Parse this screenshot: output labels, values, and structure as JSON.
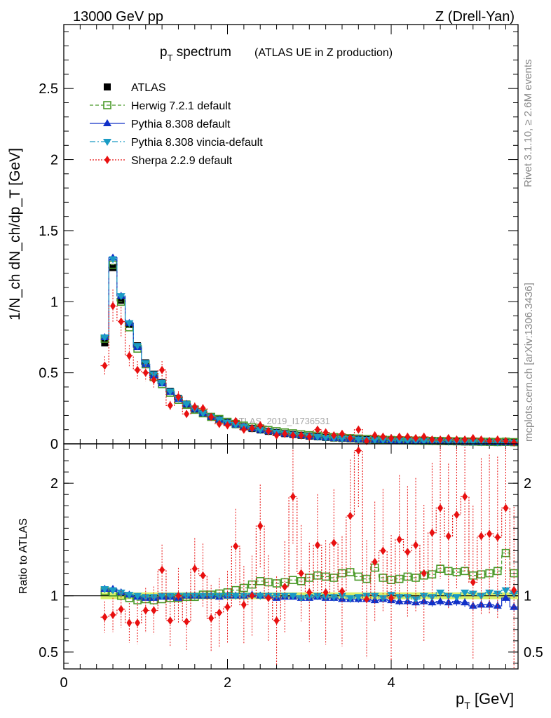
{
  "header": {
    "left": "13000 GeV pp",
    "right": "Z (Drell-Yan)"
  },
  "side": {
    "top": "Rivet 3.1.10, ≥ 2.6M events",
    "bottom": "mcplots.cern.ch [arXiv:1306.3436]"
  },
  "watermark": "ATLAS_2019_I1736531",
  "chart_data": [
    {
      "type": "line",
      "panel": "main",
      "title": "p_T spectrum",
      "title_main": "p",
      "title_sub": "T",
      "title_tail": " spectrum",
      "subtitle": "(ATLAS UE in Z production)",
      "ylabel": "1/N_ch dN_ch/dp_T [GeV]",
      "xlim": [
        0,
        5.55
      ],
      "ylim": [
        0,
        2.95
      ],
      "yticks": [
        0,
        0.5,
        1,
        1.5,
        2,
        2.5
      ],
      "ytick_labels": [
        "0",
        "0.5",
        "1",
        "1.5",
        "2",
        "2.5"
      ],
      "legend_position": "top-left",
      "legend": [
        "ATLAS",
        "Herwig 7.2.1 default",
        "Pythia 8.308 default",
        "Pythia 8.308 vincia-default",
        "Sherpa 2.2.9 default"
      ],
      "x": [
        0.5,
        0.6,
        0.7,
        0.8,
        0.9,
        1.0,
        1.1,
        1.2,
        1.3,
        1.4,
        1.5,
        1.6,
        1.7,
        1.8,
        1.9,
        2.0,
        2.1,
        2.2,
        2.3,
        2.4,
        2.5,
        2.6,
        2.7,
        2.8,
        2.9,
        3.0,
        3.1,
        3.2,
        3.3,
        3.4,
        3.5,
        3.6,
        3.7,
        3.8,
        3.9,
        4.0,
        4.1,
        4.2,
        4.3,
        4.4,
        4.5,
        4.6,
        4.7,
        4.8,
        4.9,
        5.0,
        5.1,
        5.2,
        5.3,
        5.4,
        5.5
      ],
      "series": [
        {
          "name": "ATLAS",
          "color": "#000000",
          "marker": "square",
          "values": [
            0.71,
            1.24,
            1.01,
            0.84,
            0.69,
            0.57,
            0.49,
            0.43,
            0.37,
            0.32,
            0.28,
            0.245,
            0.215,
            0.19,
            0.17,
            0.15,
            0.135,
            0.12,
            0.108,
            0.098,
            0.088,
            0.08,
            0.072,
            0.066,
            0.06,
            0.054,
            0.05,
            0.045,
            0.041,
            0.038,
            0.035,
            0.032,
            0.03,
            0.028,
            0.026,
            0.024,
            0.022,
            0.021,
            0.02,
            0.019,
            0.018,
            0.017,
            0.016,
            0.015,
            0.014,
            0.013,
            0.012,
            0.012,
            0.011,
            0.011,
            0.01
          ]
        },
        {
          "name": "Herwig 7.2.1 default",
          "color": "#4b9a2a",
          "marker": "open-square",
          "values": [
            0.74,
            1.26,
            1.0,
            0.82,
            0.67,
            0.56,
            0.47,
            0.42,
            0.36,
            0.31,
            0.275,
            0.24,
            0.215,
            0.19,
            0.175,
            0.155,
            0.14,
            0.128,
            0.116,
            0.108,
            0.097,
            0.089,
            0.08,
            0.074,
            0.067,
            0.061,
            0.057,
            0.051,
            0.047,
            0.044,
            0.04,
            0.037,
            0.034,
            0.032,
            0.029,
            0.027,
            0.025,
            0.024,
            0.023,
            0.022,
            0.021,
            0.02,
            0.019,
            0.018,
            0.017,
            0.016,
            0.015,
            0.014,
            0.013,
            0.015,
            0.012
          ]
        },
        {
          "name": "Pythia 8.308 default",
          "color": "#1030c8",
          "marker": "triangle-up",
          "values": [
            0.75,
            1.31,
            1.04,
            0.85,
            0.68,
            0.56,
            0.48,
            0.425,
            0.365,
            0.315,
            0.28,
            0.245,
            0.215,
            0.19,
            0.17,
            0.15,
            0.135,
            0.12,
            0.108,
            0.098,
            0.088,
            0.079,
            0.071,
            0.065,
            0.059,
            0.053,
            0.049,
            0.044,
            0.04,
            0.037,
            0.034,
            0.031,
            0.029,
            0.027,
            0.025,
            0.023,
            0.021,
            0.02,
            0.019,
            0.018,
            0.017,
            0.016,
            0.015,
            0.014,
            0.013,
            0.012,
            0.011,
            0.011,
            0.01,
            0.01,
            0.009
          ]
        },
        {
          "name": "Pythia 8.308 vincia-default",
          "color": "#1a9bc4",
          "marker": "triangle-down",
          "values": [
            0.75,
            1.3,
            1.04,
            0.85,
            0.69,
            0.57,
            0.49,
            0.43,
            0.37,
            0.32,
            0.28,
            0.245,
            0.215,
            0.19,
            0.17,
            0.15,
            0.135,
            0.12,
            0.108,
            0.098,
            0.088,
            0.08,
            0.072,
            0.066,
            0.06,
            0.054,
            0.05,
            0.045,
            0.041,
            0.038,
            0.035,
            0.032,
            0.03,
            0.028,
            0.026,
            0.024,
            0.022,
            0.021,
            0.02,
            0.019,
            0.018,
            0.017,
            0.016,
            0.015,
            0.014,
            0.013,
            0.012,
            0.012,
            0.011,
            0.011,
            0.01
          ]
        },
        {
          "name": "Sherpa 2.2.9 default",
          "color": "#e81010",
          "marker": "diamond",
          "values": [
            0.55,
            0.97,
            0.86,
            0.62,
            0.52,
            0.5,
            0.45,
            0.52,
            0.27,
            0.33,
            0.21,
            0.26,
            0.25,
            0.19,
            0.14,
            0.13,
            0.16,
            0.1,
            0.11,
            0.13,
            0.09,
            0.06,
            0.07,
            0.06,
            0.06,
            0.05,
            0.1,
            0.08,
            0.06,
            0.07,
            0.04,
            0.1,
            0.02,
            0.06,
            0.05,
            0.04,
            0.05,
            0.05,
            0.04,
            0.05,
            0.03,
            0.03,
            0.04,
            0.03,
            0.03,
            0.04,
            0.03,
            0.02,
            0.03,
            0.02,
            0.01
          ]
        }
      ]
    },
    {
      "type": "line",
      "panel": "ratio",
      "ylabel": "Ratio to ATLAS",
      "xlabel": "p_T [GeV]",
      "xlabel_main": "p",
      "xlabel_sub": "T",
      "xlabel_tail": " [GeV]",
      "xlim": [
        0,
        5.55
      ],
      "ylim": [
        0.35,
        2.35
      ],
      "yticks": [
        0.5,
        1,
        2
      ],
      "ytick_labels": [
        "0.5",
        "1",
        "2"
      ],
      "xticks": [
        0,
        2,
        4
      ],
      "xtick_labels": [
        "0",
        "2",
        "4"
      ],
      "x": [
        0.5,
        0.6,
        0.7,
        0.8,
        0.9,
        1.0,
        1.1,
        1.2,
        1.3,
        1.4,
        1.5,
        1.6,
        1.7,
        1.8,
        1.9,
        2.0,
        2.1,
        2.2,
        2.3,
        2.4,
        2.5,
        2.6,
        2.7,
        2.8,
        2.9,
        3.0,
        3.1,
        3.2,
        3.3,
        3.4,
        3.5,
        3.6,
        3.7,
        3.8,
        3.9,
        4.0,
        4.1,
        4.2,
        4.3,
        4.4,
        4.5,
        4.6,
        4.7,
        4.8,
        4.9,
        5.0,
        5.1,
        5.2,
        5.3,
        5.4,
        5.5
      ],
      "data_band": {
        "name": "ATLAS uncertainty",
        "color": "#d9f06a",
        "half_width": 0.03
      },
      "series": [
        {
          "name": "Herwig 7.2.1 default",
          "color": "#4b9a2a",
          "marker": "open-square",
          "values": [
            1.04,
            1.03,
            1.0,
            0.98,
            0.96,
            0.97,
            0.96,
            0.97,
            0.98,
            0.98,
            0.99,
            0.99,
            1.01,
            1.01,
            1.02,
            1.03,
            1.05,
            1.07,
            1.1,
            1.13,
            1.12,
            1.11,
            1.12,
            1.14,
            1.13,
            1.16,
            1.18,
            1.17,
            1.16,
            1.2,
            1.21,
            1.17,
            1.15,
            1.25,
            1.16,
            1.14,
            1.15,
            1.17,
            1.16,
            1.18,
            1.19,
            1.24,
            1.22,
            1.21,
            1.22,
            1.18,
            1.19,
            1.2,
            1.22,
            1.38,
            1.2
          ]
        },
        {
          "name": "Pythia 8.308 default",
          "color": "#1030c8",
          "marker": "triangle-up",
          "values": [
            1.06,
            1.06,
            1.03,
            1.01,
            0.99,
            0.98,
            0.98,
            0.99,
            0.99,
            0.98,
            1.0,
            1.0,
            1.0,
            1.0,
            0.99,
            1.0,
            1.0,
            1.0,
            1.01,
            1.0,
            1.0,
            0.98,
            0.99,
            0.99,
            0.98,
            0.98,
            0.99,
            0.98,
            0.98,
            0.97,
            0.97,
            0.97,
            0.97,
            0.96,
            0.97,
            0.96,
            0.95,
            0.95,
            0.94,
            0.95,
            0.94,
            0.95,
            0.94,
            0.95,
            0.94,
            0.91,
            0.92,
            0.92,
            0.91,
            0.98,
            0.9
          ]
        },
        {
          "name": "Pythia 8.308 vincia-default",
          "color": "#1a9bc4",
          "marker": "triangle-down",
          "values": [
            1.06,
            1.05,
            1.03,
            1.01,
            1.0,
            0.99,
            0.99,
            1.0,
            1.0,
            1.0,
            1.0,
            1.0,
            1.0,
            1.0,
            1.0,
            1.0,
            1.0,
            1.0,
            1.0,
            1.0,
            1.0,
            1.0,
            1.0,
            1.0,
            0.98,
            0.99,
            1.0,
            0.99,
            0.99,
            1.0,
            0.98,
            0.99,
            1.0,
            1.0,
            0.98,
            1.01,
            0.99,
            0.99,
            0.97,
            1.0,
            0.99,
            1.03,
            1.0,
            0.99,
            1.03,
            1.02,
            1.0,
            1.03,
            1.02,
            1.05,
            1.02
          ]
        },
        {
          "name": "Sherpa 2.2.9 default",
          "color": "#e81010",
          "marker": "diamond",
          "values": [
            0.81,
            0.83,
            0.88,
            0.76,
            0.76,
            0.87,
            0.87,
            1.23,
            0.78,
            1.0,
            0.77,
            1.24,
            1.18,
            0.8,
            0.85,
            0.9,
            1.44,
            0.92,
            1.0,
            1.62,
            0.98,
            0.78,
            1.08,
            1.88,
            1.2,
            1.03,
            1.45,
            1.03,
            1.47,
            1.04,
            1.71,
            2.29,
            0.97,
            1.3,
            1.4,
            0.98,
            1.5,
            1.39,
            1.45,
            1.2,
            1.56,
            1.78,
            1.53,
            1.72,
            1.88,
            1.12,
            1.53,
            1.55,
            1.52,
            1.78,
            1.05
          ]
        }
      ]
    }
  ]
}
